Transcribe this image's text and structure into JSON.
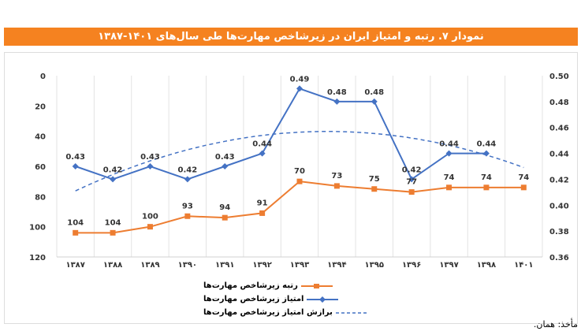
{
  "title": "نمودار ۷. رتبه و امتیاز ایران در زیرشاخص مهارت‌ها طی سال‌های ۱۴۰۱-۱۳۸۷",
  "source": "مأخذ: همان.",
  "chart_data": {
    "type": "line",
    "categories": [
      "۱۳۸۷",
      "۱۳۸۸",
      "۱۳۸۹",
      "۱۳۹۰",
      "۱۳۹۱",
      "۱۳۹۲",
      "۱۳۹۳",
      "۱۳۹۴",
      "۱۳۹۵",
      "۱۳۹۶",
      "۱۳۹۷",
      "۱۳۹۸",
      "۱۴۰۱"
    ],
    "left_axis": {
      "range": [
        0,
        120
      ],
      "reversed": true,
      "ticks": [
        "0",
        "20",
        "40",
        "60",
        "80",
        "100",
        "120"
      ]
    },
    "right_axis": {
      "range": [
        0.36,
        0.5
      ],
      "ticks": [
        "0.50",
        "0.48",
        "0.46",
        "0.44",
        "0.42",
        "0.40",
        "0.38",
        "0.36"
      ]
    },
    "grid": "vertical",
    "legend": "bottom",
    "series": [
      {
        "name": "رتبه زیرشاخص مهارت‌ها",
        "axis": "left",
        "color": "#ED7D31",
        "marker": "square",
        "values": [
          104,
          104,
          100,
          93,
          94,
          91,
          70,
          73,
          75,
          77,
          74,
          74,
          74
        ]
      },
      {
        "name": "امتیاز زیرشاخص مهارت‌ها",
        "axis": "right",
        "color": "#4472C4",
        "marker": "diamond",
        "values": [
          0.43,
          0.42,
          0.43,
          0.42,
          0.43,
          0.44,
          0.49,
          0.48,
          0.48,
          0.42,
          0.44,
          0.44,
          null
        ]
      },
      {
        "name": "برازش امتیاز زیرشاخص مهارت‌ها",
        "axis": "right",
        "color": "#4472C4",
        "style": "dashed",
        "fit": "polynomial-2"
      }
    ]
  }
}
